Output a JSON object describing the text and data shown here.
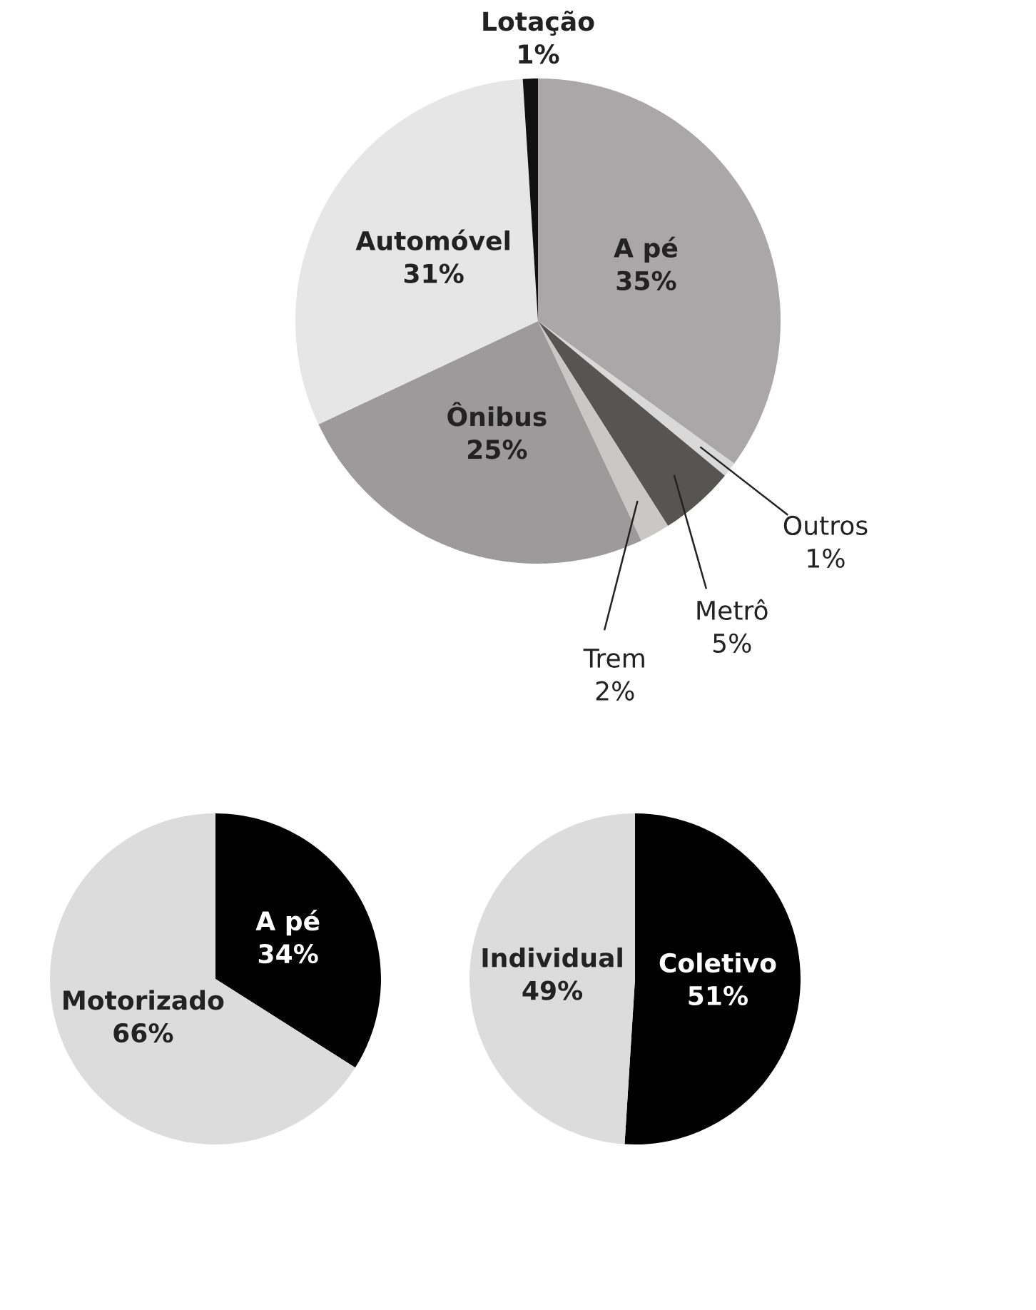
{
  "chart_data": [
    {
      "type": "pie",
      "categories": [
        "A pé",
        "Outros",
        "Metrô",
        "Trem",
        "Ônibus",
        "Automóvel",
        "Lotação"
      ],
      "values": [
        35,
        1,
        5,
        2,
        25,
        31,
        1
      ],
      "colors": [
        "#a9a7a7",
        "#d9d9d9",
        "#575454",
        "#cac8c6",
        "#9c9a9a",
        "#e6e6e6",
        "#111111"
      ],
      "value_labels": [
        "35%",
        "1%",
        "5%",
        "2%",
        "25%",
        "31%",
        "1%"
      ]
    },
    {
      "type": "pie",
      "categories": [
        "A pé",
        "Motorizado"
      ],
      "values": [
        34,
        66
      ],
      "colors": [
        "#000000",
        "#dcdcdc"
      ],
      "value_labels": [
        "34%",
        "66%"
      ]
    },
    {
      "type": "pie",
      "categories": [
        "Coletivo",
        "Individual"
      ],
      "values": [
        51,
        49
      ],
      "colors": [
        "#000000",
        "#dcdcdc"
      ],
      "value_labels": [
        "51%",
        "49%"
      ]
    }
  ]
}
